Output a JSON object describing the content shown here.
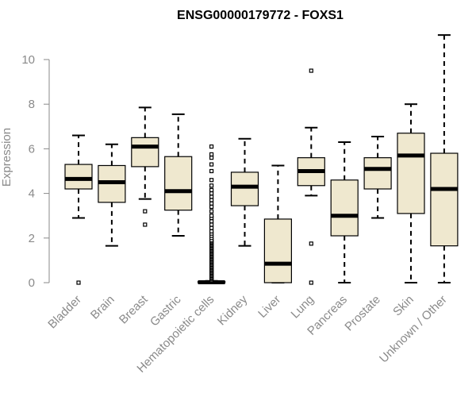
{
  "chart_data": {
    "type": "boxplot",
    "title": "ENSG00000179772 - FOXS1",
    "xlabel": "",
    "ylabel": "Expression",
    "ylim": [
      0,
      11.2
    ],
    "yticks": [
      0,
      2,
      4,
      6,
      8,
      10
    ],
    "box_fill": "#efe8cf",
    "categories": [
      "Bladder",
      "Brain",
      "Breast",
      "Gastric",
      "Hematopoietic cells",
      "Kidney",
      "Liver",
      "Lung",
      "Pancreas",
      "Prostate",
      "Skin",
      "Unknown / Other"
    ],
    "boxes": [
      {
        "category": "Bladder",
        "min": 2.9,
        "q1": 4.2,
        "median": 4.65,
        "q3": 5.3,
        "max": 6.6,
        "outliers": [
          0.0
        ]
      },
      {
        "category": "Brain",
        "min": 1.65,
        "q1": 3.6,
        "median": 4.5,
        "q3": 5.25,
        "max": 6.2,
        "outliers": []
      },
      {
        "category": "Breast",
        "min": 3.75,
        "q1": 5.2,
        "median": 6.1,
        "q3": 6.5,
        "max": 7.85,
        "outliers": [
          3.2,
          2.6
        ]
      },
      {
        "category": "Gastric",
        "min": 2.1,
        "q1": 3.25,
        "median": 4.1,
        "q3": 5.65,
        "max": 7.55,
        "outliers": []
      },
      {
        "category": "Hematopoietic cells",
        "min": 0.0,
        "q1": 0.0,
        "median": 0.02,
        "q3": 0.05,
        "max": 0.08,
        "outliers": [
          0.1,
          0.15,
          0.2,
          0.25,
          0.3,
          0.35,
          0.4,
          0.45,
          0.5,
          0.55,
          0.6,
          0.65,
          0.7,
          0.75,
          0.8,
          0.85,
          0.9,
          0.95,
          1.0,
          1.05,
          1.1,
          1.15,
          1.2,
          1.25,
          1.3,
          1.35,
          1.4,
          1.45,
          1.5,
          1.55,
          1.6,
          1.65,
          1.7,
          1.75,
          1.8,
          1.85,
          1.9,
          2.0,
          2.1,
          2.2,
          2.3,
          2.45,
          2.6,
          2.75,
          2.9,
          3.0,
          3.2,
          3.4,
          3.55,
          3.7,
          3.85,
          4.0,
          4.15,
          4.35,
          4.6,
          5.0,
          5.3,
          5.6,
          5.75,
          6.1
        ]
      },
      {
        "category": "Kidney",
        "min": 1.65,
        "q1": 3.45,
        "median": 4.3,
        "q3": 4.95,
        "max": 6.45,
        "outliers": []
      },
      {
        "category": "Liver",
        "min": 0.0,
        "q1": 0.0,
        "median": 0.85,
        "q3": 2.85,
        "max": 5.25,
        "outliers": []
      },
      {
        "category": "Lung",
        "min": 3.9,
        "q1": 4.35,
        "median": 5.0,
        "q3": 5.6,
        "max": 6.95,
        "outliers": [
          9.5,
          1.75,
          0.0
        ]
      },
      {
        "category": "Pancreas",
        "min": 0.0,
        "q1": 2.1,
        "median": 3.0,
        "q3": 4.6,
        "max": 6.3,
        "outliers": []
      },
      {
        "category": "Prostate",
        "min": 2.9,
        "q1": 4.2,
        "median": 5.1,
        "q3": 5.6,
        "max": 6.55,
        "outliers": []
      },
      {
        "category": "Skin",
        "min": 0.0,
        "q1": 3.1,
        "median": 5.7,
        "q3": 6.7,
        "max": 8.0,
        "outliers": []
      },
      {
        "category": "Unknown / Other",
        "min": 0.0,
        "q1": 1.65,
        "median": 4.2,
        "q3": 5.8,
        "max": 11.1,
        "outliers": []
      }
    ]
  }
}
